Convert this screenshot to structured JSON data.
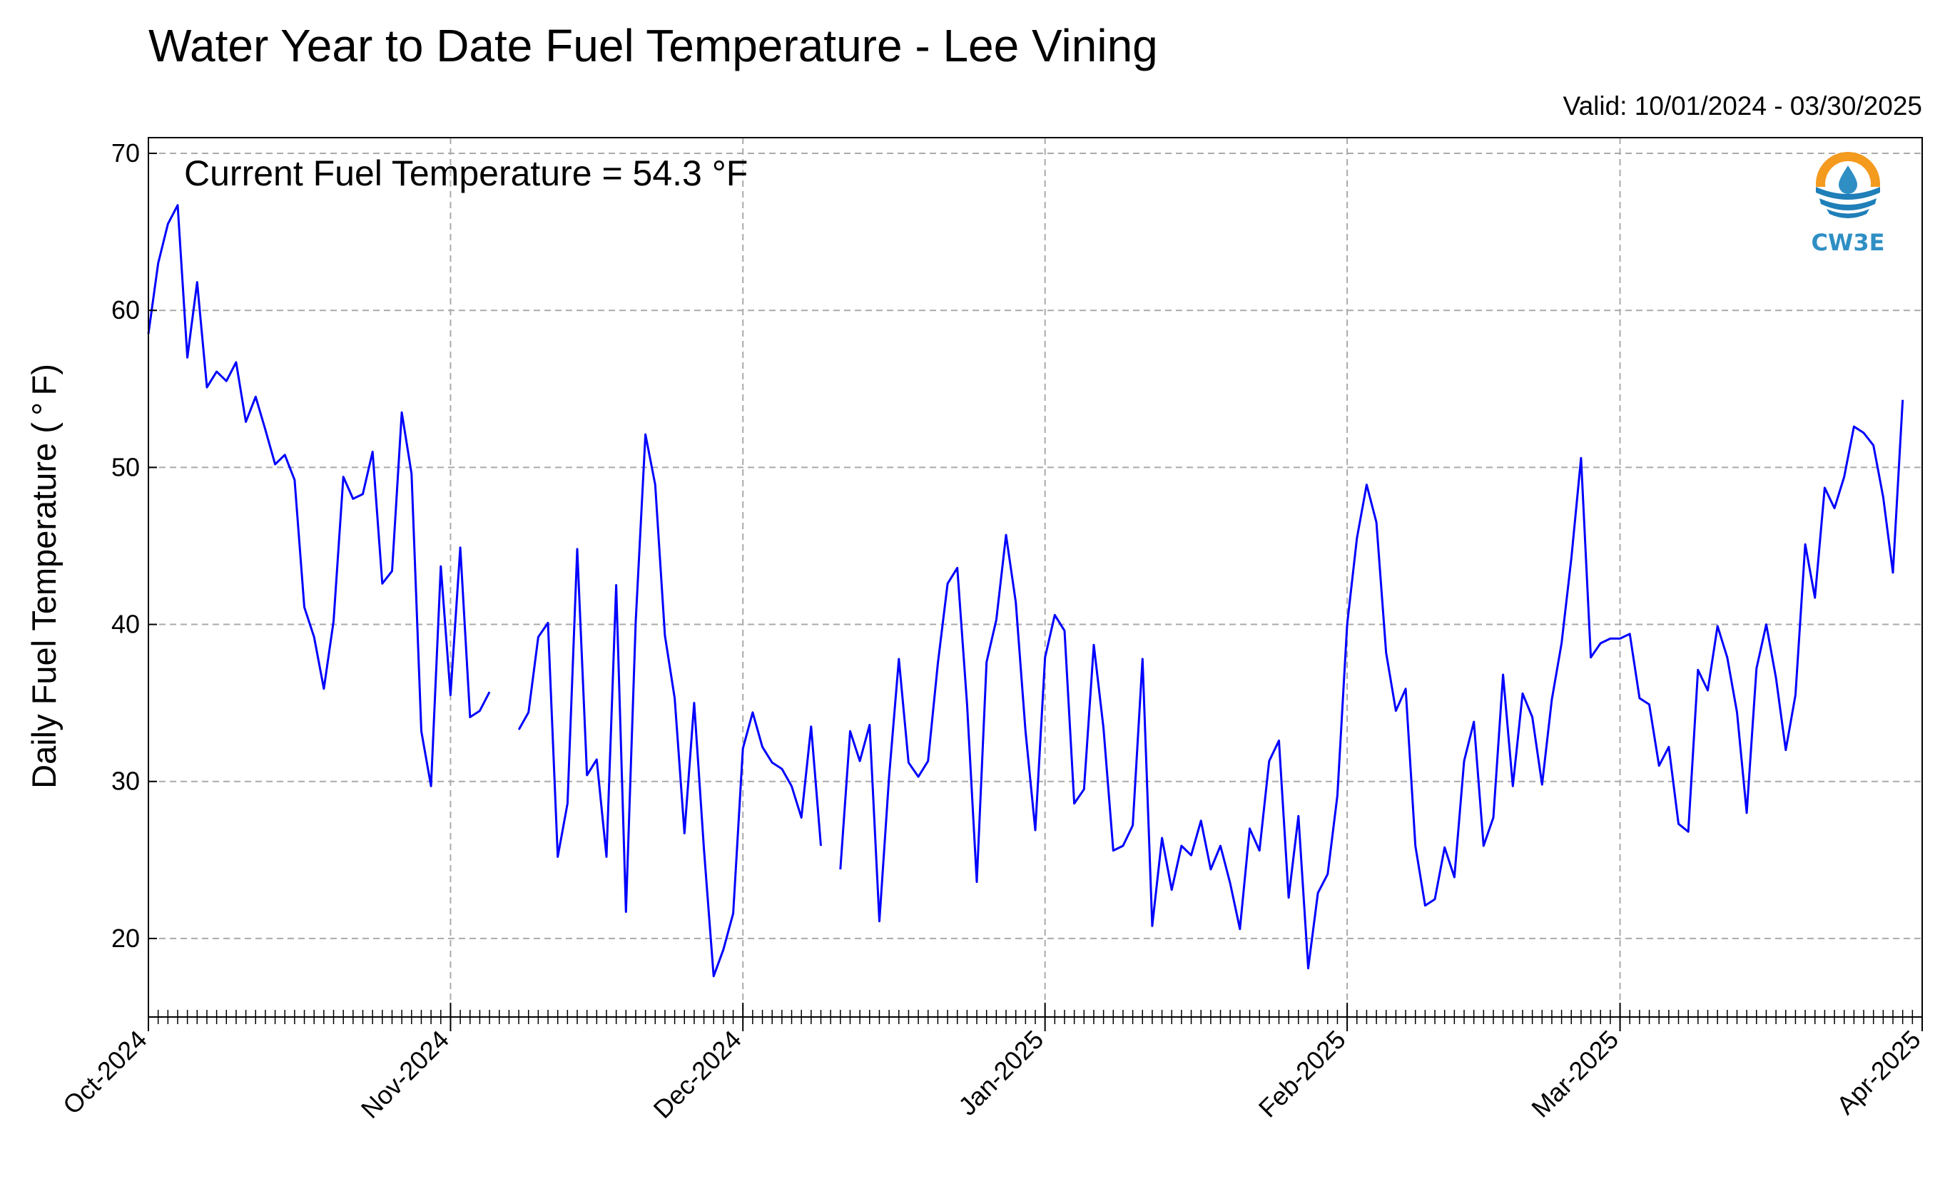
{
  "chart_data": {
    "type": "line",
    "title": "Water Year to Date Fuel Temperature - Lee Vining",
    "subtitle": "Valid: 10/01/2024 - 03/30/2025",
    "ylabel": "Daily Fuel Temperature ($^\\circ$F)",
    "ylabel_display": "Daily Fuel Temperature ( ° F)",
    "xlabel": "",
    "annotation": "Current Fuel Temperature = 54.3  °F",
    "logo_label": "CW3E",
    "ylim": [
      15,
      71
    ],
    "xlim": [
      "2024-10-01",
      "2025-04-01"
    ],
    "yticks": [
      20,
      30,
      40,
      50,
      60,
      70
    ],
    "ytick_labels": [
      "20",
      "30",
      "40",
      "50",
      "60",
      "70"
    ],
    "xticks": [
      "2024-10-01",
      "2024-11-01",
      "2024-12-01",
      "2025-01-01",
      "2025-02-01",
      "2025-03-01",
      "2025-04-01"
    ],
    "xtick_labels": [
      "Oct-2024",
      "Nov-2024",
      "Dec-2024",
      "Jan-2025",
      "Feb-2025",
      "Mar-2025",
      "Apr-2025"
    ],
    "grid": true,
    "line_color": "#0000ff",
    "series": [
      {
        "segments": [
          [
            [
              "2024-10-01",
              58.5
            ],
            [
              "2024-10-02",
              63.0
            ],
            [
              "2024-10-03",
              65.5
            ],
            [
              "2024-10-04",
              66.7
            ],
            [
              "2024-10-05",
              57.0
            ],
            [
              "2024-10-06",
              61.8
            ],
            [
              "2024-10-07",
              55.1
            ],
            [
              "2024-10-08",
              56.1
            ],
            [
              "2024-10-09",
              55.5
            ],
            [
              "2024-10-10",
              56.7
            ],
            [
              "2024-10-11",
              52.9
            ],
            [
              "2024-10-12",
              54.5
            ],
            [
              "2024-10-13",
              52.4
            ],
            [
              "2024-10-14",
              50.2
            ],
            [
              "2024-10-15",
              50.8
            ],
            [
              "2024-10-16",
              49.2
            ],
            [
              "2024-10-17",
              41.1
            ],
            [
              "2024-10-18",
              39.2
            ],
            [
              "2024-10-19",
              35.9
            ],
            [
              "2024-10-20",
              40.2
            ],
            [
              "2024-10-21",
              49.4
            ],
            [
              "2024-10-22",
              48.0
            ],
            [
              "2024-10-23",
              48.3
            ],
            [
              "2024-10-24",
              51.0
            ],
            [
              "2024-10-25",
              42.6
            ],
            [
              "2024-10-26",
              43.4
            ],
            [
              "2024-10-27",
              53.5
            ],
            [
              "2024-10-28",
              49.6
            ],
            [
              "2024-10-29",
              33.2
            ],
            [
              "2024-10-30",
              29.7
            ],
            [
              "2024-10-31",
              43.7
            ],
            [
              "2024-11-01",
              35.5
            ],
            [
              "2024-11-02",
              44.9
            ],
            [
              "2024-11-03",
              34.1
            ],
            [
              "2024-11-04",
              34.5
            ],
            [
              "2024-11-05",
              35.7
            ]
          ],
          [
            [
              "2024-11-08",
              33.3
            ],
            [
              "2024-11-09",
              34.4
            ],
            [
              "2024-11-10",
              39.2
            ],
            [
              "2024-11-11",
              40.1
            ],
            [
              "2024-11-12",
              25.2
            ],
            [
              "2024-11-13",
              28.6
            ],
            [
              "2024-11-14",
              44.8
            ],
            [
              "2024-11-15",
              30.4
            ],
            [
              "2024-11-16",
              31.4
            ],
            [
              "2024-11-17",
              25.2
            ],
            [
              "2024-11-18",
              42.5
            ],
            [
              "2024-11-19",
              21.7
            ],
            [
              "2024-11-20",
              40.2
            ],
            [
              "2024-11-21",
              52.1
            ],
            [
              "2024-11-22",
              48.9
            ],
            [
              "2024-11-23",
              39.3
            ],
            [
              "2024-11-24",
              35.3
            ],
            [
              "2024-11-25",
              26.7
            ],
            [
              "2024-11-26",
              35.0
            ],
            [
              "2024-11-27",
              25.7
            ],
            [
              "2024-11-28",
              17.6
            ],
            [
              "2024-11-29",
              19.3
            ],
            [
              "2024-11-30",
              21.6
            ],
            [
              "2024-12-01",
              32.1
            ],
            [
              "2024-12-02",
              34.4
            ],
            [
              "2024-12-03",
              32.2
            ],
            [
              "2024-12-04",
              31.2
            ],
            [
              "2024-12-05",
              30.8
            ],
            [
              "2024-12-06",
              29.7
            ],
            [
              "2024-12-07",
              27.7
            ],
            [
              "2024-12-08",
              33.5
            ],
            [
              "2024-12-09",
              25.9
            ]
          ],
          [
            [
              "2024-12-11",
              24.4
            ],
            [
              "2024-12-12",
              33.2
            ],
            [
              "2024-12-13",
              31.3
            ],
            [
              "2024-12-14",
              33.6
            ],
            [
              "2024-12-15",
              21.1
            ],
            [
              "2024-12-16",
              30.3
            ],
            [
              "2024-12-17",
              37.8
            ],
            [
              "2024-12-18",
              31.2
            ],
            [
              "2024-12-19",
              30.3
            ],
            [
              "2024-12-20",
              31.3
            ],
            [
              "2024-12-21",
              37.5
            ],
            [
              "2024-12-22",
              42.6
            ],
            [
              "2024-12-23",
              43.6
            ],
            [
              "2024-12-24",
              34.9
            ],
            [
              "2024-12-25",
              23.6
            ],
            [
              "2024-12-26",
              37.6
            ],
            [
              "2024-12-27",
              40.3
            ],
            [
              "2024-12-28",
              45.7
            ],
            [
              "2024-12-29",
              41.4
            ],
            [
              "2024-12-30",
              33.2
            ],
            [
              "2024-12-31",
              26.9
            ],
            [
              "2025-01-01",
              37.9
            ],
            [
              "2025-01-02",
              40.6
            ],
            [
              "2025-01-03",
              39.6
            ],
            [
              "2025-01-04",
              28.6
            ],
            [
              "2025-01-05",
              29.5
            ],
            [
              "2025-01-06",
              38.7
            ],
            [
              "2025-01-07",
              33.4
            ],
            [
              "2025-01-08",
              25.6
            ],
            [
              "2025-01-09",
              25.9
            ],
            [
              "2025-01-10",
              27.2
            ],
            [
              "2025-01-11",
              37.8
            ],
            [
              "2025-01-12",
              20.8
            ],
            [
              "2025-01-13",
              26.4
            ],
            [
              "2025-01-14",
              23.1
            ],
            [
              "2025-01-15",
              25.9
            ],
            [
              "2025-01-16",
              25.3
            ],
            [
              "2025-01-17",
              27.5
            ],
            [
              "2025-01-18",
              24.4
            ],
            [
              "2025-01-19",
              25.9
            ],
            [
              "2025-01-20",
              23.5
            ],
            [
              "2025-01-21",
              20.6
            ],
            [
              "2025-01-22",
              27.0
            ],
            [
              "2025-01-23",
              25.6
            ],
            [
              "2025-01-24",
              31.3
            ],
            [
              "2025-01-25",
              32.6
            ],
            [
              "2025-01-26",
              22.6
            ],
            [
              "2025-01-27",
              27.8
            ],
            [
              "2025-01-28",
              18.1
            ],
            [
              "2025-01-29",
              22.9
            ],
            [
              "2025-01-30",
              24.1
            ],
            [
              "2025-01-31",
              29.1
            ],
            [
              "2025-02-01",
              40.0
            ],
            [
              "2025-02-02",
              45.5
            ],
            [
              "2025-02-03",
              48.9
            ],
            [
              "2025-02-04",
              46.5
            ],
            [
              "2025-02-05",
              38.2
            ],
            [
              "2025-02-06",
              34.5
            ],
            [
              "2025-02-07",
              35.9
            ],
            [
              "2025-02-08",
              25.9
            ],
            [
              "2025-02-09",
              22.1
            ],
            [
              "2025-02-10",
              22.5
            ],
            [
              "2025-02-11",
              25.8
            ],
            [
              "2025-02-12",
              23.9
            ],
            [
              "2025-02-13",
              31.3
            ],
            [
              "2025-02-14",
              33.8
            ],
            [
              "2025-02-15",
              25.9
            ],
            [
              "2025-02-16",
              27.7
            ],
            [
              "2025-02-17",
              36.8
            ],
            [
              "2025-02-18",
              29.7
            ],
            [
              "2025-02-19",
              35.6
            ],
            [
              "2025-02-20",
              34.1
            ],
            [
              "2025-02-21",
              29.8
            ],
            [
              "2025-02-22",
              35.2
            ],
            [
              "2025-02-23",
              38.8
            ],
            [
              "2025-02-24",
              44.2
            ],
            [
              "2025-02-25",
              50.6
            ],
            [
              "2025-02-26",
              37.9
            ],
            [
              "2025-02-27",
              38.8
            ],
            [
              "2025-02-28",
              39.1
            ],
            [
              "2025-03-01",
              39.1
            ],
            [
              "2025-03-02",
              39.4
            ],
            [
              "2025-03-03",
              35.3
            ],
            [
              "2025-03-04",
              34.9
            ],
            [
              "2025-03-05",
              31.0
            ],
            [
              "2025-03-06",
              32.2
            ],
            [
              "2025-03-07",
              27.3
            ],
            [
              "2025-03-08",
              26.8
            ],
            [
              "2025-03-09",
              37.1
            ],
            [
              "2025-03-10",
              35.8
            ],
            [
              "2025-03-11",
              39.9
            ],
            [
              "2025-03-12",
              37.9
            ],
            [
              "2025-03-13",
              34.4
            ],
            [
              "2025-03-14",
              28.0
            ],
            [
              "2025-03-15",
              37.2
            ],
            [
              "2025-03-16",
              40.0
            ],
            [
              "2025-03-17",
              36.6
            ],
            [
              "2025-03-18",
              32.0
            ],
            [
              "2025-03-19",
              35.5
            ],
            [
              "2025-03-20",
              45.1
            ],
            [
              "2025-03-21",
              41.7
            ],
            [
              "2025-03-22",
              48.7
            ],
            [
              "2025-03-23",
              47.4
            ],
            [
              "2025-03-24",
              49.4
            ],
            [
              "2025-03-25",
              52.6
            ],
            [
              "2025-03-26",
              52.2
            ],
            [
              "2025-03-27",
              51.4
            ],
            [
              "2025-03-28",
              48.1
            ],
            [
              "2025-03-29",
              43.3
            ],
            [
              "2025-03-30",
              54.3
            ]
          ]
        ]
      }
    ]
  }
}
